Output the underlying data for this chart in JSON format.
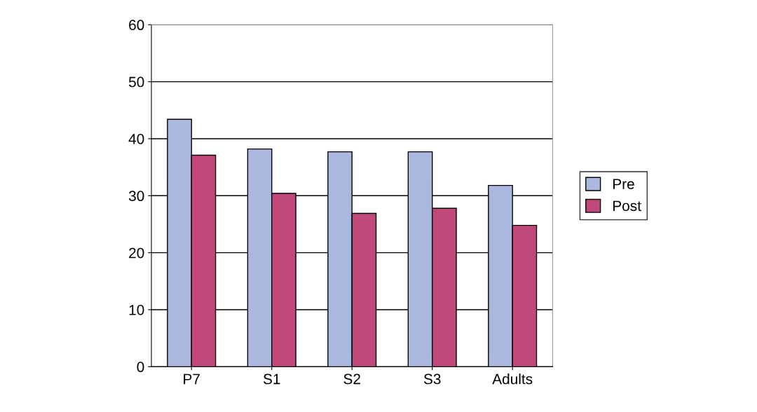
{
  "chart_data": {
    "type": "bar",
    "categories": [
      "P7",
      "S1",
      "S2",
      "S3",
      "Adults"
    ],
    "series": [
      {
        "name": "Pre",
        "color": "#aab8e0",
        "values": [
          43.4,
          38.2,
          37.7,
          37.7,
          31.8
        ]
      },
      {
        "name": "Post",
        "color": "#c0487a",
        "values": [
          37.1,
          30.4,
          26.9,
          27.8,
          24.8
        ]
      }
    ],
    "ylim": [
      0,
      60
    ],
    "yticks": [
      0,
      10,
      20,
      30,
      40,
      50,
      60
    ],
    "grid": "y",
    "legend": "right"
  }
}
